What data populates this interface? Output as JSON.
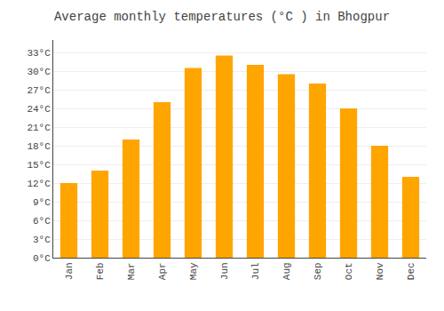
{
  "chart_data": {
    "type": "bar",
    "title": "Average monthly temperatures (°C ) in Bhogpur",
    "categories": [
      "Jan",
      "Feb",
      "Mar",
      "Apr",
      "May",
      "Jun",
      "Jul",
      "Aug",
      "Sep",
      "Oct",
      "Nov",
      "Dec"
    ],
    "values": [
      12,
      14,
      19,
      25,
      30.5,
      32.5,
      31,
      29.5,
      28,
      24,
      18,
      13
    ],
    "color": "#FFA500",
    "ylim": [
      0,
      35
    ],
    "yticks": [
      {
        "value": 0,
        "label": "0°C"
      },
      {
        "value": 3,
        "label": "3°C"
      },
      {
        "value": 6,
        "label": "6°C"
      },
      {
        "value": 9,
        "label": "9°C"
      },
      {
        "value": 12,
        "label": "12°C"
      },
      {
        "value": 15,
        "label": "15°C"
      },
      {
        "value": 18,
        "label": "18°C"
      },
      {
        "value": 21,
        "label": "21°C"
      },
      {
        "value": 24,
        "label": "24°C"
      },
      {
        "value": 27,
        "label": "27°C"
      },
      {
        "value": 30,
        "label": "30°C"
      },
      {
        "value": 33,
        "label": "33°C"
      }
    ],
    "grid": true
  }
}
